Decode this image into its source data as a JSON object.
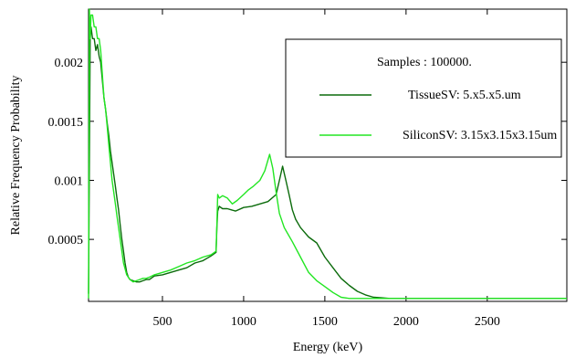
{
  "chart_data": {
    "type": "line",
    "title": "",
    "xlabel": "Energy (keV)",
    "ylabel": "Relative Frequency Probability",
    "xlim": [
      45,
      2990
    ],
    "ylim": [
      -2.5e-05,
      0.00245
    ],
    "xticks": [
      500,
      1000,
      1500,
      2000,
      2500
    ],
    "xtick_labels": [
      "500",
      "1000",
      "1500",
      "2000",
      "2500"
    ],
    "yticks": [
      0.0005,
      0.001,
      0.0015,
      0.002
    ],
    "ytick_labels": [
      "0.0005",
      "0.001",
      "0.0015",
      "0.002"
    ],
    "grid": false,
    "legend": {
      "placement": "top-right",
      "header": "Samples : 100000."
    },
    "series": [
      {
        "name": "TissueSV: 5.x5.x5.um",
        "color": "#0b6b0b",
        "x": [
          45,
          55,
          60,
          70,
          80,
          90,
          100,
          110,
          120,
          130,
          140,
          150,
          160,
          170,
          180,
          190,
          200,
          210,
          220,
          230,
          240,
          250,
          260,
          270,
          280,
          290,
          300,
          320,
          340,
          360,
          380,
          400,
          420,
          450,
          500,
          550,
          600,
          650,
          700,
          750,
          800,
          830,
          835,
          840,
          850,
          870,
          900,
          950,
          1000,
          1050,
          1100,
          1150,
          1200,
          1220,
          1240,
          1260,
          1280,
          1300,
          1320,
          1350,
          1400,
          1450,
          1500,
          1550,
          1600,
          1650,
          1700,
          1750,
          1800,
          1850,
          1900,
          2000,
          2500,
          2990
        ],
        "y": [
          4e-05,
          0.0022,
          0.0023,
          0.0022,
          0.0022,
          0.0021,
          0.00215,
          0.00205,
          0.002,
          0.00185,
          0.0017,
          0.0016,
          0.00148,
          0.00138,
          0.00125,
          0.00115,
          0.00105,
          0.00095,
          0.00085,
          0.00075,
          0.00062,
          0.0005,
          0.0004,
          0.0003,
          0.00022,
          0.00018,
          0.00016,
          0.00015,
          0.00014,
          0.00014,
          0.00015,
          0.00016,
          0.00016,
          0.00019,
          0.0002,
          0.00022,
          0.00024,
          0.00026,
          0.0003,
          0.00032,
          0.00036,
          0.00039,
          0.0006,
          0.00074,
          0.00078,
          0.00076,
          0.00076,
          0.00074,
          0.00077,
          0.00078,
          0.0008,
          0.00082,
          0.00088,
          0.001,
          0.00112,
          0.001,
          0.00088,
          0.00075,
          0.00067,
          0.0006,
          0.00052,
          0.00047,
          0.00035,
          0.00026,
          0.00017,
          0.00011,
          6e-05,
          3e-05,
          1e-05,
          5e-06,
          0.0,
          0.0,
          0.0,
          0.0
        ]
      },
      {
        "name": "SiliconSV: 3.15x3.15x3.15um",
        "color": "#22e622",
        "x": [
          45,
          50,
          55,
          60,
          70,
          80,
          90,
          100,
          110,
          120,
          130,
          140,
          150,
          160,
          170,
          180,
          190,
          200,
          210,
          220,
          230,
          240,
          250,
          260,
          280,
          300,
          320,
          340,
          360,
          380,
          400,
          420,
          450,
          500,
          550,
          600,
          650,
          700,
          750,
          800,
          830,
          835,
          840,
          850,
          870,
          900,
          930,
          960,
          1000,
          1030,
          1060,
          1100,
          1130,
          1160,
          1180,
          1200,
          1220,
          1250,
          1300,
          1350,
          1400,
          1450,
          1500,
          1550,
          1600,
          1650,
          1700,
          1750,
          2000,
          2500,
          2990
        ],
        "y": [
          0.0,
          0.00245,
          0.0022,
          0.0024,
          0.0024,
          0.0023,
          0.0023,
          0.0022,
          0.0022,
          0.0021,
          0.0019,
          0.0017,
          0.0016,
          0.00145,
          0.0013,
          0.00115,
          0.001,
          0.0009,
          0.0008,
          0.0007,
          0.0006,
          0.0005,
          0.0004,
          0.0003,
          0.0002,
          0.00016,
          0.00014,
          0.00015,
          0.00016,
          0.00017,
          0.00017,
          0.00018,
          0.0002,
          0.00022,
          0.00024,
          0.00027,
          0.0003,
          0.00032,
          0.00035,
          0.00037,
          0.0004,
          0.00062,
          0.00088,
          0.00085,
          0.00087,
          0.00085,
          0.0008,
          0.00083,
          0.00088,
          0.00092,
          0.00095,
          0.001,
          0.00108,
          0.00122,
          0.0011,
          0.0009,
          0.00072,
          0.0006,
          0.00048,
          0.00035,
          0.00022,
          0.00015,
          0.0001,
          5e-05,
          1e-05,
          0.0,
          0.0,
          0.0,
          0.0,
          0.0,
          0.0
        ]
      }
    ]
  }
}
